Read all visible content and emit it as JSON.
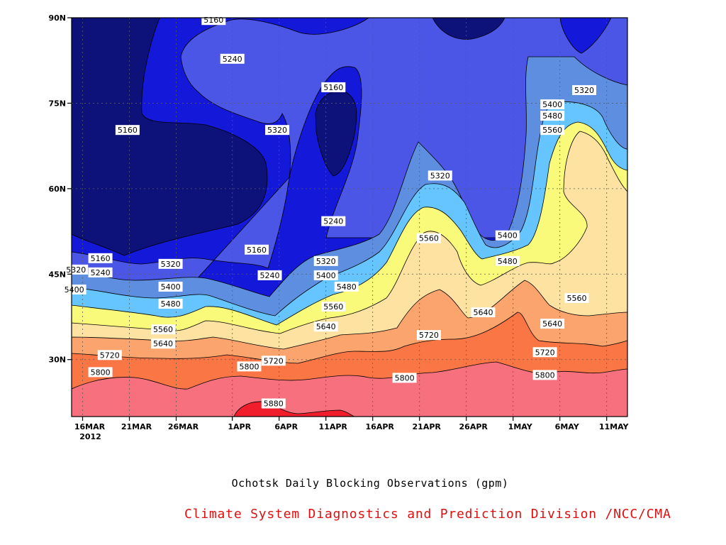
{
  "caption": "Ochotsk Daily Blocking Observations (gpm)",
  "credit": "Climate System Diagnostics and Prediction Division /NCC/CMA",
  "chart_data": {
    "type": "heatmap",
    "subtype": "filled-contour",
    "units": "gpm",
    "x_ticks": [
      "16MAR",
      "21MAR",
      "26MAR",
      "1APR",
      "6APR",
      "11APR",
      "16APR",
      "21APR",
      "26APR",
      "1MAY",
      "6MAY",
      "11MAY"
    ],
    "x_year": "2012",
    "y_ticks": [
      "30N",
      "45N",
      "60N",
      "75N",
      "90N"
    ],
    "y_tick_values": [
      30,
      45,
      60,
      75,
      90
    ],
    "ylim": [
      20,
      90
    ],
    "x_range_days": [
      "15MAR",
      "13MAY"
    ],
    "grid": true,
    "levels": [
      5160,
      5240,
      5320,
      5400,
      5480,
      5560,
      5640,
      5720,
      5800,
      5880
    ],
    "colors": {
      "below_5160": "#0d117a",
      "5160_5240": "#1418d8",
      "5240_5320": "#4b55e6",
      "5320_5400": "#5e8ee0",
      "5400_5480": "#66c4ff",
      "5480_5560": "#fafa7a",
      "5560_5640": "#fde2a2",
      "5640_5720": "#fba46d",
      "5720_5800": "#fa7645",
      "5800_5880": "#f6707e",
      "above_5880": "#f01e2c"
    },
    "contour_labels": [
      {
        "text": "5160",
        "day": 14,
        "lat": 89.6
      },
      {
        "text": "5240",
        "day": 16,
        "lat": 82.8
      },
      {
        "text": "5320",
        "day": 20.8,
        "lat": 70.3
      },
      {
        "text": "5160",
        "day": 4.8,
        "lat": 70.3
      },
      {
        "text": "5160",
        "day": 26.8,
        "lat": 77.8
      },
      {
        "text": "5320",
        "day": 38.2,
        "lat": 62.3
      },
      {
        "text": "5320",
        "day": 53.6,
        "lat": 77.3
      },
      {
        "text": "5400",
        "day": 50.2,
        "lat": 74.8
      },
      {
        "text": "5480",
        "day": 50.2,
        "lat": 72.8
      },
      {
        "text": "5560",
        "day": 50.2,
        "lat": 70.3
      },
      {
        "text": "5240",
        "day": 26.8,
        "lat": 54.3
      },
      {
        "text": "5160",
        "day": 18.6,
        "lat": 49.3
      },
      {
        "text": "5160",
        "day": 1.9,
        "lat": 47.8
      },
      {
        "text": "5240",
        "day": 1.9,
        "lat": 45.3
      },
      {
        "text": "5320",
        "day": -0.7,
        "lat": 45.8
      },
      {
        "text": "5400",
        "day": -0.9,
        "lat": 42.3
      },
      {
        "text": "5320",
        "day": 9.4,
        "lat": 46.8
      },
      {
        "text": "5400",
        "day": 9.4,
        "lat": 42.8
      },
      {
        "text": "5480",
        "day": 9.4,
        "lat": 39.8
      },
      {
        "text": "5560",
        "day": 8.6,
        "lat": 35.3
      },
      {
        "text": "5640",
        "day": 8.6,
        "lat": 32.8
      },
      {
        "text": "5240",
        "day": 20.0,
        "lat": 44.8
      },
      {
        "text": "5320",
        "day": 26.0,
        "lat": 47.3
      },
      {
        "text": "5400",
        "day": 26.0,
        "lat": 44.8
      },
      {
        "text": "5480",
        "day": 28.2,
        "lat": 42.8
      },
      {
        "text": "5560",
        "day": 26.8,
        "lat": 39.3
      },
      {
        "text": "5640",
        "day": 26.0,
        "lat": 35.8
      },
      {
        "text": "5720",
        "day": 2.9,
        "lat": 30.8
      },
      {
        "text": "5720",
        "day": 20.4,
        "lat": 29.8
      },
      {
        "text": "5800",
        "day": 1.9,
        "lat": 27.8
      },
      {
        "text": "5800",
        "day": 17.8,
        "lat": 28.8
      },
      {
        "text": "5880",
        "day": 20.4,
        "lat": 22.3
      },
      {
        "text": "5800",
        "day": 34.4,
        "lat": 26.8
      },
      {
        "text": "5560",
        "day": 37.0,
        "lat": 51.3
      },
      {
        "text": "5640",
        "day": 42.8,
        "lat": 38.3
      },
      {
        "text": "5720",
        "day": 37.0,
        "lat": 34.3
      },
      {
        "text": "5400",
        "day": 45.4,
        "lat": 51.8
      },
      {
        "text": "5480",
        "day": 45.4,
        "lat": 47.3
      },
      {
        "text": "5560",
        "day": 52.8,
        "lat": 40.8
      },
      {
        "text": "5640",
        "day": 50.2,
        "lat": 36.3
      },
      {
        "text": "5720",
        "day": 49.4,
        "lat": 31.3
      },
      {
        "text": "5800",
        "day": 49.4,
        "lat": 27.3
      }
    ]
  }
}
